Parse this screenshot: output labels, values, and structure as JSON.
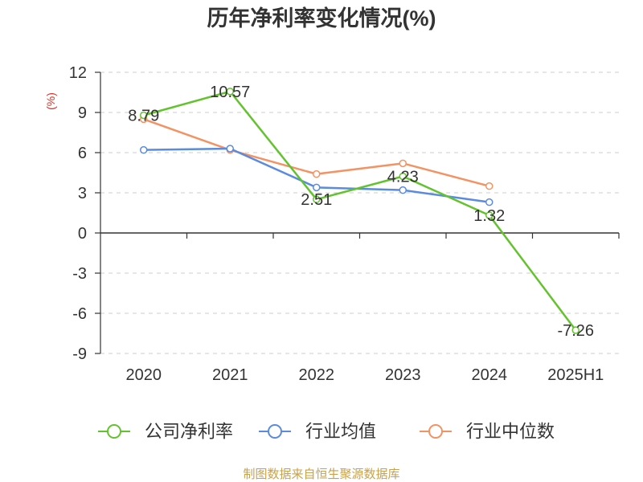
{
  "footer": "制图数据来自恒生聚源数据库",
  "colors": {
    "unit_label": "#d93025",
    "footer": "#c9a14a",
    "axis": "#333333",
    "grid": "#cccccc"
  },
  "chart_data": {
    "type": "line",
    "title": "历年净利率变化情况(%)",
    "ylabel": "(%)",
    "categories": [
      "2020",
      "2021",
      "2022",
      "2023",
      "2024",
      "2025H1"
    ],
    "ylim": [
      -9,
      12
    ],
    "yticks": [
      12,
      9,
      6,
      3,
      0,
      -3,
      -6,
      -9
    ],
    "grid": true,
    "legend_position": "bottom",
    "series": [
      {
        "name": "公司净利率",
        "color": "#63c32e",
        "values": [
          8.79,
          10.57,
          2.51,
          4.23,
          1.32,
          -7.26
        ],
        "data_labels": true
      },
      {
        "name": "行业均值",
        "color": "#5b8bde",
        "values": [
          6.2,
          6.3,
          3.4,
          3.2,
          2.3,
          null
        ],
        "data_labels": false
      },
      {
        "name": "行业中位数",
        "color": "#f39262",
        "values": [
          8.5,
          6.2,
          4.4,
          5.2,
          3.5,
          null
        ],
        "data_labels": false
      }
    ]
  }
}
